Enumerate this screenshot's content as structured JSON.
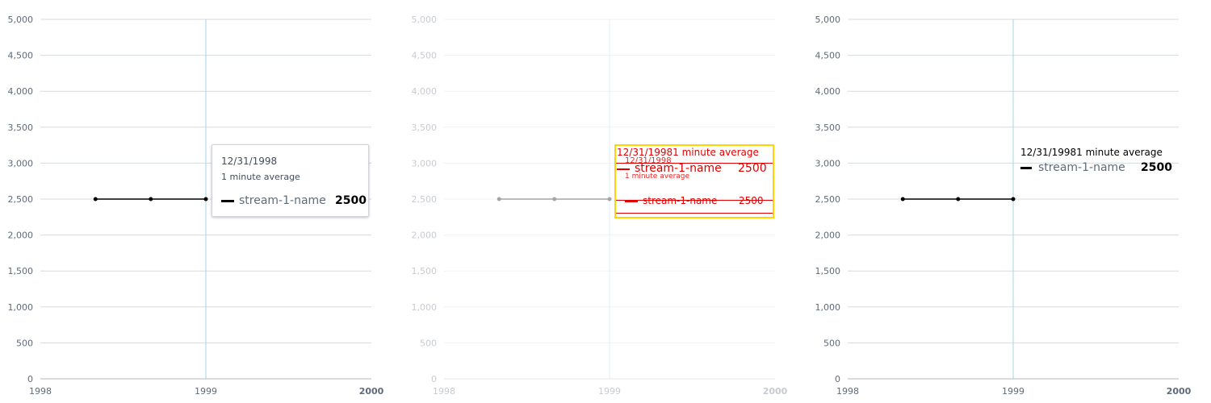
{
  "chart_data": [
    {
      "type": "line",
      "panel": "rendered",
      "x_ticks": [
        "1998",
        "1999",
        "2000"
      ],
      "y_ticks": [
        "0",
        "500",
        "1,000",
        "1,500",
        "2,000",
        "2,500",
        "3,000",
        "3,500",
        "4,000",
        "4,500",
        "5,000"
      ],
      "xlim": [
        1998,
        2000
      ],
      "ylim": [
        0,
        5000
      ],
      "series": [
        {
          "name": "stream-1-name",
          "color": "#000000",
          "x": [
            1998.333,
            1998.667,
            1999.0
          ],
          "values": [
            2500,
            2500,
            2500
          ]
        }
      ],
      "cursor_x": 1999.0,
      "tooltip": {
        "date": "12/31/1998",
        "subtitle": "1 minute average",
        "series_name": "stream-1-name",
        "value": "2500"
      }
    },
    {
      "type": "line",
      "panel": "diff",
      "x_ticks": [
        "1998",
        "1999",
        "2000"
      ],
      "y_ticks": [
        "0",
        "500",
        "1,000",
        "1,500",
        "2,000",
        "2,500",
        "3,000",
        "3,500",
        "4,000",
        "4,500",
        "5,000"
      ],
      "xlim": [
        1998,
        2000
      ],
      "ylim": [
        0,
        5000
      ],
      "series": [
        {
          "name": "stream-1-name",
          "color": "#000000",
          "x": [
            1998.333,
            1998.667,
            1999.0
          ],
          "values": [
            2500,
            2500,
            2500
          ]
        }
      ],
      "cursor_x": 1999.0,
      "tooltip": {
        "date": "12/31/1998",
        "subtitle": "1 minute average",
        "series_name": "stream-1-name",
        "value": "2500"
      },
      "diff_overlay": {
        "heading": "12/31/19981 minute average",
        "series_name": "stream-1-name",
        "value": "2500"
      }
    },
    {
      "type": "line",
      "panel": "expected",
      "x_ticks": [
        "1998",
        "1999",
        "2000"
      ],
      "y_ticks": [
        "0",
        "500",
        "1,000",
        "1,500",
        "2,000",
        "2,500",
        "3,000",
        "3,500",
        "4,000",
        "4,500",
        "5,000"
      ],
      "xlim": [
        1998,
        2000
      ],
      "ylim": [
        0,
        5000
      ],
      "series": [
        {
          "name": "stream-1-name",
          "color": "#000000",
          "x": [
            1998.333,
            1998.667,
            1999.0
          ],
          "values": [
            2500,
            2500,
            2500
          ]
        }
      ],
      "cursor_x": 1999.0,
      "tooltip": {
        "heading": "12/31/19981 minute average",
        "series_name": "stream-1-name",
        "value": "2500"
      }
    }
  ],
  "colors": {
    "grid": "#d5dbdb",
    "axis": "#b0b8bf",
    "cursor": "#a6d4ea",
    "tick_text": "#5f6b7a",
    "diff_red": "#e00000",
    "diff_yellow": "#ffd400"
  }
}
